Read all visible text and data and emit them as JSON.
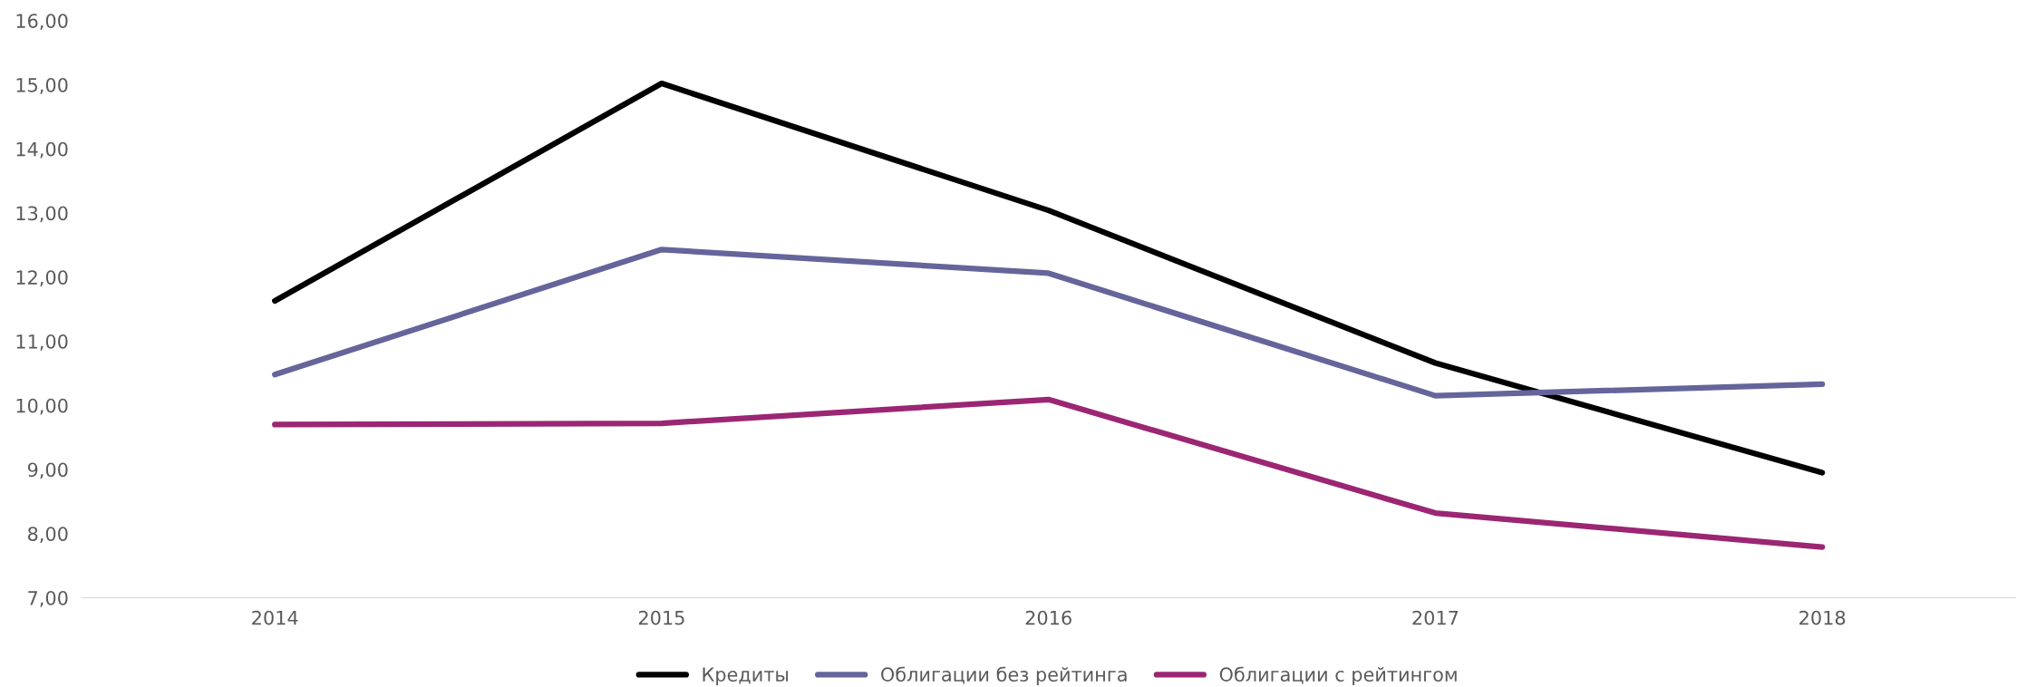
{
  "chart_data": {
    "type": "line",
    "categories": [
      "2014",
      "2015",
      "2016",
      "2017",
      "2018"
    ],
    "series": [
      {
        "name": "Кредиты",
        "color": "#000000",
        "values": [
          11.63,
          15.02,
          13.04,
          10.66,
          8.95
        ]
      },
      {
        "name": "Облигации без рейтинга",
        "color": "#65659b",
        "values": [
          10.48,
          12.43,
          12.06,
          10.15,
          10.33
        ]
      },
      {
        "name": "Облигации с рейтингом",
        "color": "#9b2673",
        "values": [
          9.7,
          9.72,
          10.09,
          8.32,
          7.79
        ]
      }
    ],
    "ylim": [
      7,
      16
    ],
    "yticks": [
      {
        "value": 7,
        "label": "7,00"
      },
      {
        "value": 8,
        "label": "8,00"
      },
      {
        "value": 9,
        "label": "9,00"
      },
      {
        "value": 10,
        "label": "10,00"
      },
      {
        "value": 11,
        "label": "11,00"
      },
      {
        "value": 12,
        "label": "12,00"
      },
      {
        "value": 13,
        "label": "13,00"
      },
      {
        "value": 14,
        "label": "14,00"
      },
      {
        "value": 15,
        "label": "15,00"
      },
      {
        "value": 16,
        "label": "16,00"
      }
    ],
    "grid": false,
    "legend": "bottom",
    "marker": "none",
    "line_style": "solid"
  }
}
